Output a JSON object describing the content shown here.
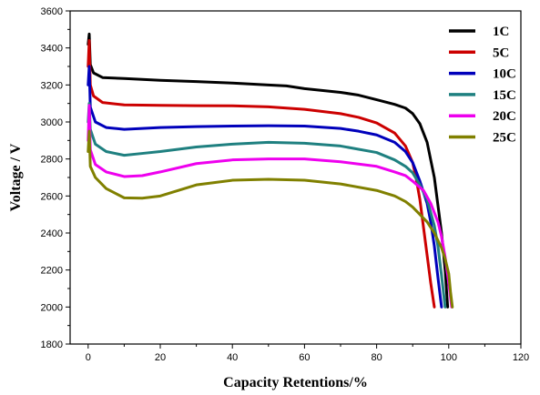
{
  "chart_data": {
    "type": "line",
    "xlabel": "Capacity Retentions/%",
    "ylabel": "Voltage / V",
    "xlim": [
      -5,
      120
    ],
    "ylim": [
      1800,
      3600
    ],
    "xticks": [
      0,
      20,
      40,
      60,
      80,
      100,
      120
    ],
    "yticks": [
      1800,
      2000,
      2200,
      2400,
      2600,
      2800,
      3000,
      3200,
      3400,
      3600
    ],
    "grid": false,
    "legend_position": "top-right",
    "series": [
      {
        "name": "1C",
        "color": "#000000",
        "points": [
          [
            0,
            3420
          ],
          [
            0.3,
            3475
          ],
          [
            0.6,
            3310
          ],
          [
            1.5,
            3265
          ],
          [
            4,
            3240
          ],
          [
            10,
            3235
          ],
          [
            20,
            3225
          ],
          [
            30,
            3218
          ],
          [
            40,
            3210
          ],
          [
            50,
            3200
          ],
          [
            55,
            3195
          ],
          [
            60,
            3180
          ],
          [
            70,
            3160
          ],
          [
            75,
            3145
          ],
          [
            80,
            3120
          ],
          [
            85,
            3095
          ],
          [
            88,
            3075
          ],
          [
            90,
            3045
          ],
          [
            92,
            2990
          ],
          [
            94,
            2890
          ],
          [
            96,
            2700
          ],
          [
            97,
            2550
          ],
          [
            98,
            2400
          ],
          [
            99,
            2200
          ],
          [
            99.7,
            2000
          ]
        ]
      },
      {
        "name": "5C",
        "color": "#cc0000",
        "points": [
          [
            0,
            3300
          ],
          [
            0.3,
            3440
          ],
          [
            0.6,
            3200
          ],
          [
            1.5,
            3140
          ],
          [
            4,
            3105
          ],
          [
            10,
            3092
          ],
          [
            20,
            3090
          ],
          [
            30,
            3088
          ],
          [
            40,
            3087
          ],
          [
            50,
            3082
          ],
          [
            60,
            3068
          ],
          [
            70,
            3045
          ],
          [
            75,
            3025
          ],
          [
            80,
            2995
          ],
          [
            85,
            2940
          ],
          [
            88,
            2870
          ],
          [
            90,
            2780
          ],
          [
            91,
            2690
          ],
          [
            92,
            2580
          ],
          [
            93,
            2430
          ],
          [
            94,
            2280
          ],
          [
            95,
            2130
          ],
          [
            96,
            2000
          ]
        ]
      },
      {
        "name": "10C",
        "color": "#0000bb",
        "points": [
          [
            0,
            3200
          ],
          [
            0.3,
            3300
          ],
          [
            0.6,
            3080
          ],
          [
            2,
            3000
          ],
          [
            5,
            2970
          ],
          [
            10,
            2960
          ],
          [
            15,
            2965
          ],
          [
            20,
            2970
          ],
          [
            30,
            2975
          ],
          [
            40,
            2978
          ],
          [
            50,
            2980
          ],
          [
            60,
            2978
          ],
          [
            70,
            2965
          ],
          [
            75,
            2950
          ],
          [
            80,
            2930
          ],
          [
            85,
            2890
          ],
          [
            88,
            2840
          ],
          [
            90,
            2780
          ],
          [
            92,
            2680
          ],
          [
            94,
            2560
          ],
          [
            95,
            2460
          ],
          [
            96,
            2330
          ],
          [
            97,
            2160
          ],
          [
            98,
            2000
          ]
        ]
      },
      {
        "name": "15C",
        "color": "#1f8080",
        "points": [
          [
            0,
            3000
          ],
          [
            0.3,
            3100
          ],
          [
            0.6,
            2960
          ],
          [
            2,
            2880
          ],
          [
            5,
            2840
          ],
          [
            10,
            2820
          ],
          [
            15,
            2830
          ],
          [
            20,
            2840
          ],
          [
            30,
            2865
          ],
          [
            40,
            2880
          ],
          [
            50,
            2890
          ],
          [
            60,
            2885
          ],
          [
            70,
            2870
          ],
          [
            80,
            2835
          ],
          [
            85,
            2795
          ],
          [
            88,
            2760
          ],
          [
            90,
            2725
          ],
          [
            92,
            2660
          ],
          [
            94,
            2580
          ],
          [
            96,
            2440
          ],
          [
            97,
            2330
          ],
          [
            98,
            2170
          ],
          [
            99,
            2000
          ]
        ]
      },
      {
        "name": "20C",
        "color": "#ee00ee",
        "points": [
          [
            0,
            2900
          ],
          [
            0.3,
            3090
          ],
          [
            0.6,
            2850
          ],
          [
            2,
            2770
          ],
          [
            5,
            2730
          ],
          [
            10,
            2705
          ],
          [
            15,
            2710
          ],
          [
            20,
            2730
          ],
          [
            30,
            2775
          ],
          [
            40,
            2795
          ],
          [
            50,
            2800
          ],
          [
            60,
            2800
          ],
          [
            70,
            2785
          ],
          [
            80,
            2760
          ],
          [
            85,
            2730
          ],
          [
            88,
            2710
          ],
          [
            90,
            2680
          ],
          [
            93,
            2630
          ],
          [
            95,
            2560
          ],
          [
            97,
            2460
          ],
          [
            98,
            2380
          ],
          [
            99,
            2270
          ],
          [
            100,
            2130
          ],
          [
            100.5,
            2050
          ],
          [
            100.8,
            2000
          ]
        ]
      },
      {
        "name": "25C",
        "color": "#808000",
        "points": [
          [
            0,
            2840
          ],
          [
            0.3,
            2950
          ],
          [
            0.6,
            2760
          ],
          [
            2,
            2700
          ],
          [
            5,
            2640
          ],
          [
            10,
            2590
          ],
          [
            15,
            2588
          ],
          [
            20,
            2600
          ],
          [
            30,
            2660
          ],
          [
            40,
            2685
          ],
          [
            50,
            2690
          ],
          [
            60,
            2685
          ],
          [
            70,
            2665
          ],
          [
            80,
            2630
          ],
          [
            85,
            2600
          ],
          [
            88,
            2570
          ],
          [
            90,
            2540
          ],
          [
            92,
            2500
          ],
          [
            94,
            2460
          ],
          [
            96,
            2400
          ],
          [
            98,
            2320
          ],
          [
            99,
            2260
          ],
          [
            100,
            2180
          ],
          [
            100.5,
            2080
          ],
          [
            101,
            2000
          ]
        ]
      }
    ]
  }
}
